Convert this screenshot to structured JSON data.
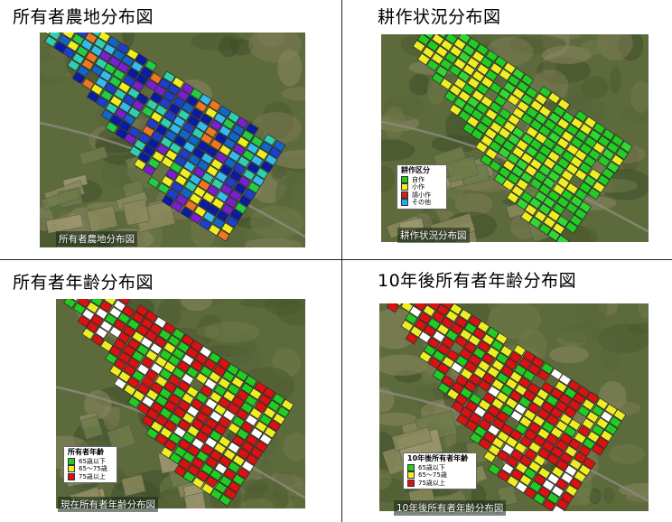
{
  "panels": [
    {
      "title": "所有者農地分布図",
      "caption": "所有者農地分布図",
      "legend": null
    },
    {
      "title": "耕作状況分布図",
      "caption": "耕作状況分布図",
      "legend": {
        "title": "耕作区分",
        "items": [
          {
            "label": "自作",
            "color": "#22cc22"
          },
          {
            "label": "小作",
            "color": "#eeee22"
          },
          {
            "label": "請小作",
            "color": "#cc2222"
          },
          {
            "label": "その他",
            "color": "#22aaee"
          }
        ]
      }
    },
    {
      "title": "所有者年齢分布図",
      "caption": "現在所有者年齢分布図",
      "legend": {
        "title": "所有者年齢",
        "items": [
          {
            "label": "65歳以下",
            "color": "#22cc22"
          },
          {
            "label": "65～75歳",
            "color": "#eeee22"
          },
          {
            "label": "75歳以上",
            "color": "#dd1111"
          }
        ]
      }
    },
    {
      "title": "10年後所有者年齢分布図",
      "caption": "10年後所有者年齢分布図",
      "legend": {
        "title": "10年後所有者年齢",
        "items": [
          {
            "label": "65歳以下",
            "color": "#22cc22"
          },
          {
            "label": "65～75歳",
            "color": "#eeee22"
          },
          {
            "label": "75歳以上",
            "color": "#dd1111"
          }
        ]
      }
    }
  ],
  "palettes": {
    "owners": [
      "#1d3fd0",
      "#0a1aa8",
      "#22cc44",
      "#33bbee",
      "#eeee22",
      "#7a1fd0",
      "#1166cc",
      "#2fd0b0",
      "#ee7722"
    ],
    "cultivation": [
      "#22cc22",
      "#22cc22",
      "#33d733",
      "#eeee22",
      "#eeee22"
    ],
    "age_now": [
      "#22cc22",
      "#22cc22",
      "#ffffff",
      "#eeee22",
      "#dd1111",
      "#dd1111"
    ],
    "age_10y": [
      "#dd1111",
      "#dd1111",
      "#dd1111",
      "#eeee22",
      "#eeee22",
      "#ffffff",
      "#22cc22"
    ]
  }
}
